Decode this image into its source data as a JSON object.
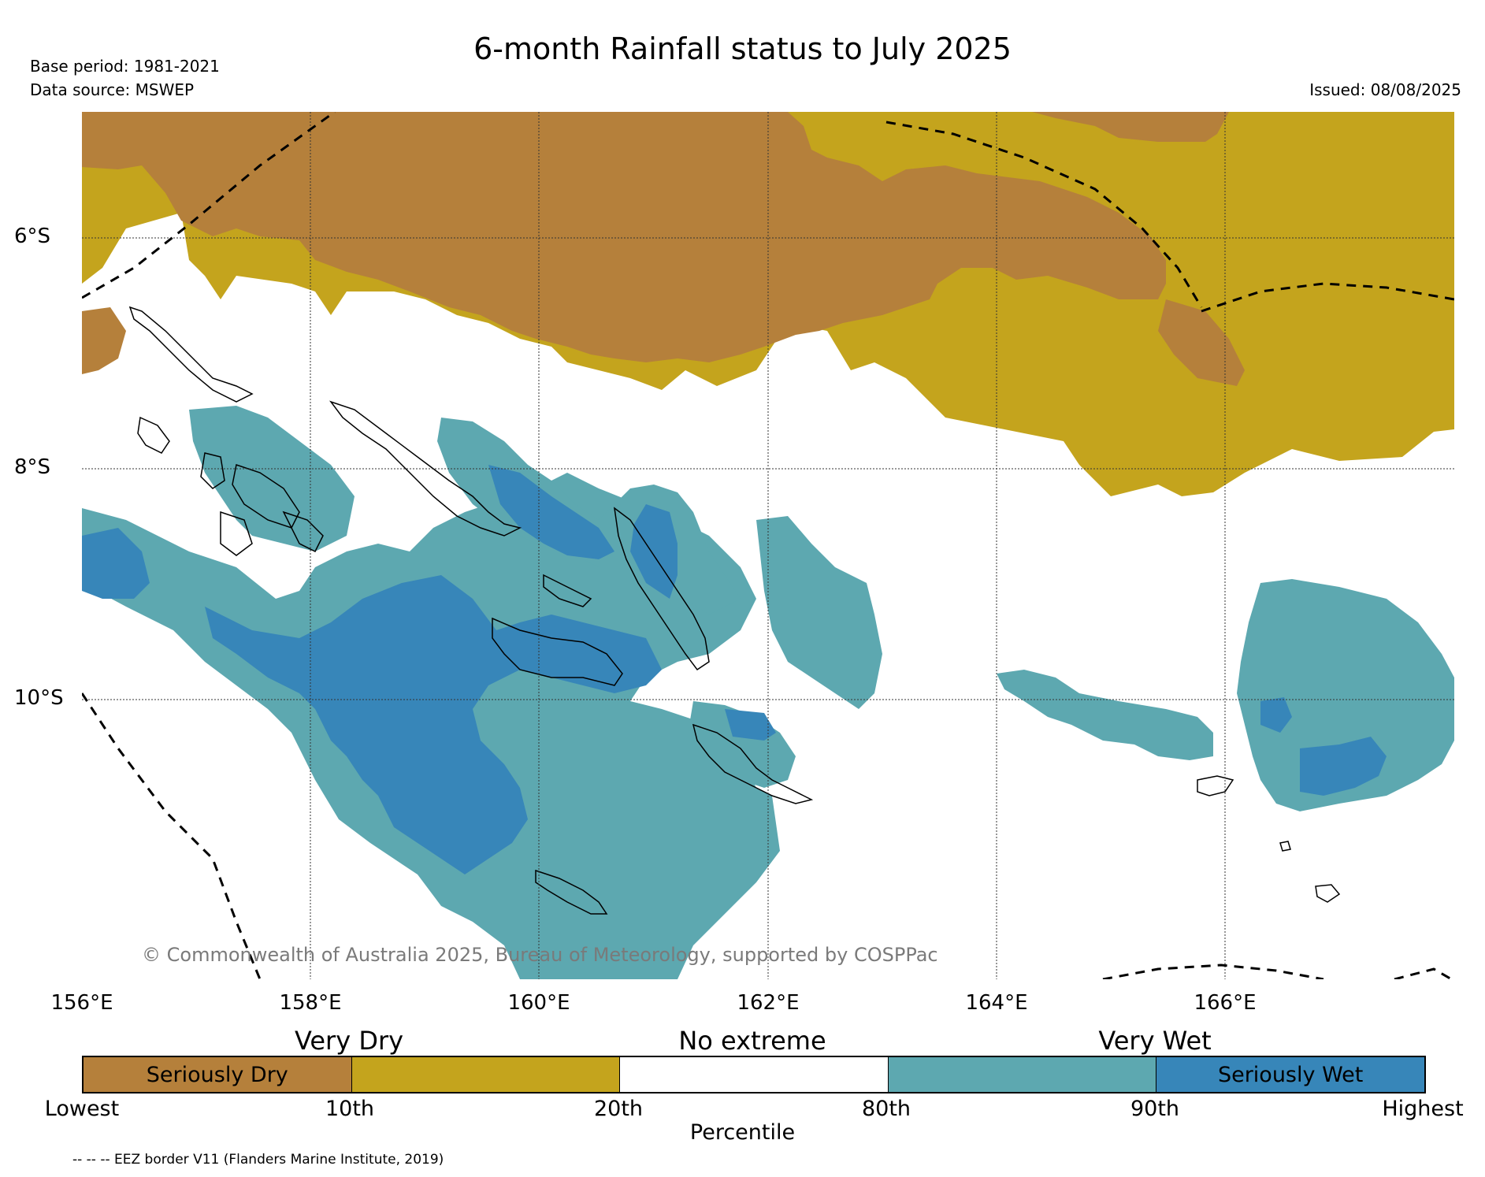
{
  "title": "6-month Rainfall status to July 2025",
  "base_period": "Base period: 1981-2021",
  "data_source": "Data source: MSWEP",
  "issued": "Issued: 08/08/2025",
  "map": {
    "lat_labels": [
      "6°S",
      "8°S",
      "10°S"
    ],
    "lon_labels": [
      "156°E",
      "158°E",
      "160°E",
      "162°E",
      "164°E",
      "166°E"
    ],
    "copyright": "© Commonwealth of Australia 2025, Bureau of Meteorology, supported by COSPPac"
  },
  "legend": {
    "category_labels": [
      "Very Dry",
      "No extreme",
      "Very Wet"
    ],
    "cells": [
      {
        "label": "Seriously Dry",
        "color": "#b5803b"
      },
      {
        "label": "",
        "color": "#c4a41d"
      },
      {
        "label": "",
        "color": "#ffffff"
      },
      {
        "label": "",
        "color": "#5da8b0"
      },
      {
        "label": "Seriously Wet",
        "color": "#3786b9"
      }
    ],
    "tick_labels": [
      "Lowest",
      "10th",
      "20th",
      "80th",
      "90th",
      "Highest"
    ],
    "axis_title": "Percentile"
  },
  "footnote": "-- -- -- EEZ border V11 (Flanders Marine Institute, 2019)"
}
